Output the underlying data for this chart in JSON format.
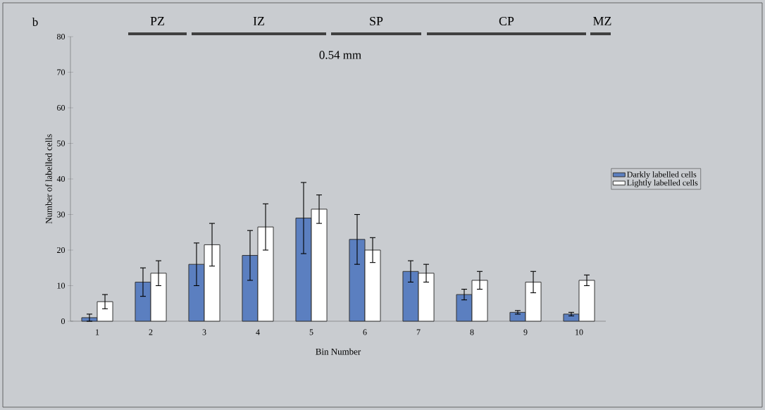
{
  "chart_data": {
    "type": "bar",
    "xlabel": "Bin Number",
    "ylabel": "Number of labelled cells",
    "categories": [
      "1",
      "2",
      "3",
      "4",
      "5",
      "6",
      "7",
      "8",
      "9",
      "10"
    ],
    "series": [
      {
        "name": "Darkly labelled cells",
        "color": "#5b7fc0",
        "values": [
          1,
          11,
          16,
          18.5,
          29,
          23,
          14,
          7.5,
          2.5,
          2
        ],
        "errors": [
          1,
          4,
          6,
          7,
          10,
          7,
          3,
          1.5,
          0.5,
          0.5
        ]
      },
      {
        "name": "Lightly labelled cells",
        "color": "#ffffff",
        "values": [
          5.5,
          13.5,
          21.5,
          26.5,
          31.5,
          20,
          13.5,
          11.5,
          11,
          11.5
        ],
        "errors": [
          2,
          3.5,
          6,
          6.5,
          4,
          3.5,
          2.5,
          2.5,
          3,
          1.5
        ]
      }
    ],
    "ylim": [
      0,
      80
    ],
    "yticks": [
      0,
      10,
      20,
      30,
      40,
      50,
      60,
      70,
      80
    ],
    "legend": "right",
    "annotations": [
      "b",
      "PZ",
      "IZ",
      "SP",
      "CP",
      "MZ",
      "0.54 mm"
    ]
  }
}
